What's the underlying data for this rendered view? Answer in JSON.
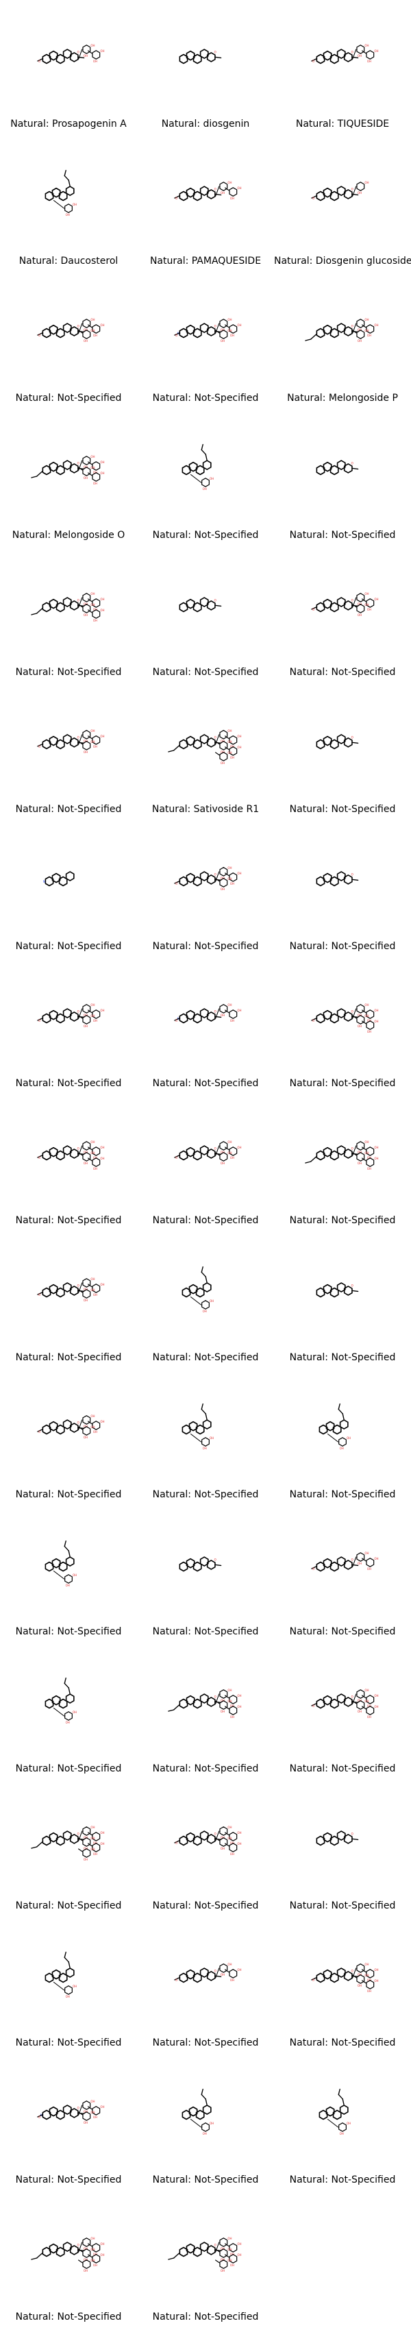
{
  "molecules": [
    {
      "label": "Natural: Prosapogenin A",
      "rings": 5,
      "sugars": 2,
      "tail": "left",
      "n": false
    },
    {
      "label": "Natural: diosgenin",
      "rings": 5,
      "sugars": 0,
      "tail": "none",
      "n": false
    },
    {
      "label": "Natural: TIQUESIDE",
      "rings": 5,
      "sugars": 2,
      "tail": "left",
      "n": false
    },
    {
      "label": "Natural: Daucosterol",
      "rings": 4,
      "sugars": 1,
      "tail": "branch",
      "n": false
    },
    {
      "label": "Natural: PAMAQUESIDE",
      "rings": 5,
      "sugars": 2,
      "tail": "left",
      "n": false
    },
    {
      "label": "Natural: Diosgenin glucoside",
      "rings": 5,
      "sugars": 1,
      "tail": "left",
      "n": false
    },
    {
      "label": "Natural: Not-Specified",
      "rings": 5,
      "sugars": 3,
      "tail": "left",
      "n": false
    },
    {
      "label": "Natural: Not-Specified",
      "rings": 5,
      "sugars": 3,
      "tail": "left",
      "n": true
    },
    {
      "label": "Natural: Melongoside P",
      "rings": 5,
      "sugars": 3,
      "tail": "chain",
      "n": false
    },
    {
      "label": "Natural: Melongoside O",
      "rings": 5,
      "sugars": 4,
      "tail": "chain",
      "n": false
    },
    {
      "label": "Natural: Not-Specified",
      "rings": 4,
      "sugars": 1,
      "tail": "branch",
      "n": false
    },
    {
      "label": "Natural: Not-Specified",
      "rings": 5,
      "sugars": 0,
      "tail": "none",
      "n": false
    },
    {
      "label": "Natural: Not-Specified",
      "rings": 5,
      "sugars": 4,
      "tail": "chain",
      "n": false
    },
    {
      "label": "Natural: Not-Specified",
      "rings": 5,
      "sugars": 0,
      "tail": "none",
      "n": false
    },
    {
      "label": "Natural: Not-Specified",
      "rings": 5,
      "sugars": 3,
      "tail": "left",
      "n": false
    },
    {
      "label": "Natural: Not-Specified",
      "rings": 5,
      "sugars": 3,
      "tail": "left",
      "n": false
    },
    {
      "label": "Natural: Sativoside R1",
      "rings": 5,
      "sugars": 5,
      "tail": "chain",
      "n": false
    },
    {
      "label": "Natural: Not-Specified",
      "rings": 5,
      "sugars": 0,
      "tail": "none",
      "n": false
    },
    {
      "label": "Natural: Not-Specified",
      "rings": 4,
      "sugars": 0,
      "tail": "none",
      "n": true
    },
    {
      "label": "Natural: Not-Specified",
      "rings": 5,
      "sugars": 3,
      "tail": "left",
      "n": false
    },
    {
      "label": "Natural: Not-Specified",
      "rings": 5,
      "sugars": 0,
      "tail": "none",
      "n": false
    },
    {
      "label": "Natural: Not-Specified",
      "rings": 5,
      "sugars": 3,
      "tail": "left",
      "n": false
    },
    {
      "label": "Natural: Not-Specified",
      "rings": 5,
      "sugars": 2,
      "tail": "left",
      "n": true
    },
    {
      "label": "Natural: Not-Specified",
      "rings": 5,
      "sugars": 4,
      "tail": "left",
      "n": false
    },
    {
      "label": "Natural: Not-Specified",
      "rings": 5,
      "sugars": 4,
      "tail": "left",
      "n": false
    },
    {
      "label": "Natural: Not-Specified",
      "rings": 5,
      "sugars": 3,
      "tail": "left",
      "n": false
    },
    {
      "label": "Natural: Not-Specified",
      "rings": 5,
      "sugars": 4,
      "tail": "chain",
      "n": false
    },
    {
      "label": "Natural: Not-Specified",
      "rings": 5,
      "sugars": 3,
      "tail": "left",
      "n": false
    },
    {
      "label": "Natural: Not-Specified",
      "rings": 4,
      "sugars": 1,
      "tail": "branch",
      "n": false
    },
    {
      "label": "Natural: Not-Specified",
      "rings": 5,
      "sugars": 0,
      "tail": "none",
      "n": false
    },
    {
      "label": "Natural: Not-Specified",
      "rings": 5,
      "sugars": 3,
      "tail": "left",
      "n": false
    },
    {
      "label": "Natural: Not-Specified",
      "rings": 4,
      "sugars": 1,
      "tail": "branch",
      "n": false
    },
    {
      "label": "Natural: Not-Specified",
      "rings": 4,
      "sugars": 1,
      "tail": "branch",
      "n": false
    },
    {
      "label": "Natural: Not-Specified",
      "rings": 4,
      "sugars": 1,
      "tail": "branch",
      "n": false
    },
    {
      "label": "Natural: Not-Specified",
      "rings": 5,
      "sugars": 0,
      "tail": "none",
      "n": false
    },
    {
      "label": "Natural: Not-Specified",
      "rings": 5,
      "sugars": 2,
      "tail": "left",
      "n": false
    },
    {
      "label": "Natural: Not-Specified",
      "rings": 4,
      "sugars": 1,
      "tail": "branch",
      "n": false
    },
    {
      "label": "Natural: Not-Specified",
      "rings": 5,
      "sugars": 4,
      "tail": "chain",
      "n": false
    },
    {
      "label": "Natural: Not-Specified",
      "rings": 5,
      "sugars": 4,
      "tail": "left",
      "n": false
    },
    {
      "label": "Natural: Not-Specified",
      "rings": 5,
      "sugars": 5,
      "tail": "chain",
      "n": false
    },
    {
      "label": "Natural: Not-Specified",
      "rings": 5,
      "sugars": 4,
      "tail": "left",
      "n": false
    },
    {
      "label": "Natural: Not-Specified",
      "rings": 5,
      "sugars": 0,
      "tail": "none",
      "n": false
    },
    {
      "label": "Natural: Not-Specified",
      "rings": 4,
      "sugars": 1,
      "tail": "branch",
      "n": false
    },
    {
      "label": "Natural: Not-Specified",
      "rings": 5,
      "sugars": 2,
      "tail": "left",
      "n": false
    },
    {
      "label": "Natural: Not-Specified",
      "rings": 5,
      "sugars": 4,
      "tail": "left",
      "n": false
    },
    {
      "label": "Natural: Not-Specified",
      "rings": 5,
      "sugars": 3,
      "tail": "left",
      "n": true
    },
    {
      "label": "Natural: Not-Specified",
      "rings": 4,
      "sugars": 1,
      "tail": "branch",
      "n": false
    },
    {
      "label": "Natural: Not-Specified",
      "rings": 4,
      "sugars": 1,
      "tail": "branch",
      "n": false
    },
    {
      "label": "Natural: Not-Specified",
      "rings": 5,
      "sugars": 5,
      "tail": "chain",
      "n": false
    },
    {
      "label": "Natural: Not-Specified",
      "rings": 5,
      "sugars": 5,
      "tail": "chain",
      "n": false
    }
  ]
}
